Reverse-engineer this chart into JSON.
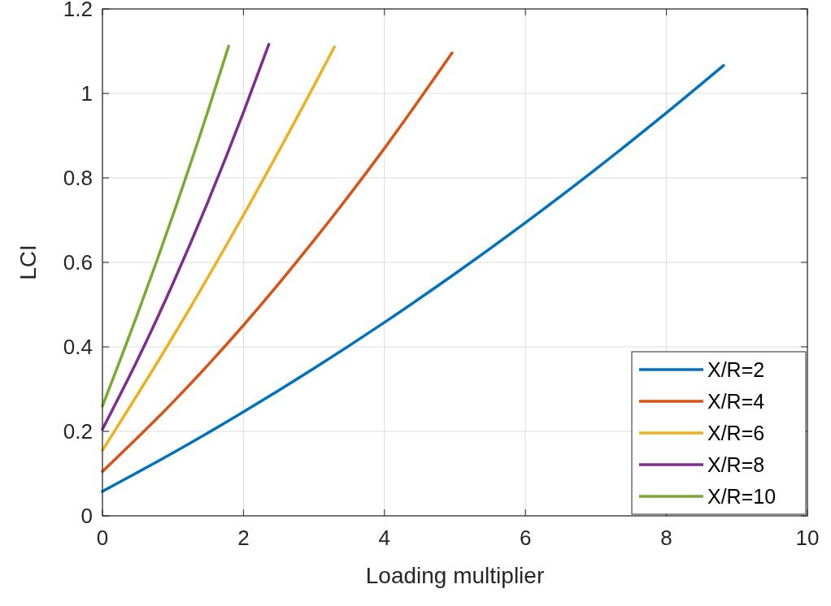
{
  "chart_data": {
    "type": "line",
    "xlabel": "Loading multiplier",
    "ylabel": "LCI",
    "xlim": [
      0,
      10
    ],
    "ylim": [
      0,
      1.2
    ],
    "xticks": [
      0,
      2,
      4,
      6,
      8,
      10
    ],
    "yticks": [
      0,
      0.2,
      0.4,
      0.6,
      0.8,
      1,
      1.2
    ],
    "grid": true,
    "legend": "bottom right",
    "marker": "none",
    "line_style": "solid",
    "series": [
      {
        "name": "X/R=2",
        "color": "#0072bd",
        "x": [
          0,
          1,
          2,
          3,
          4,
          5,
          6,
          7,
          8,
          8.81
        ],
        "values": [
          0.058,
          0.149,
          0.246,
          0.349,
          0.458,
          0.573,
          0.694,
          0.821,
          0.954,
          1.066
        ]
      },
      {
        "name": "X/R=4",
        "color": "#d95319",
        "x": [
          0,
          1,
          2,
          3,
          4,
          4.96
        ],
        "values": [
          0.105,
          0.269,
          0.451,
          0.652,
          0.87,
          1.096
        ]
      },
      {
        "name": "X/R=6",
        "color": "#edb120",
        "x": [
          0,
          1,
          2,
          3,
          3.29
        ],
        "values": [
          0.155,
          0.424,
          0.712,
          1.018,
          1.11
        ]
      },
      {
        "name": "X/R=8",
        "color": "#7e2f8e",
        "x": [
          0,
          0.5,
          1,
          1.5,
          2,
          2.36
        ],
        "values": [
          0.205,
          0.37,
          0.55,
          0.745,
          0.955,
          1.116
        ]
      },
      {
        "name": "X/R=10",
        "color": "#77ac30",
        "x": [
          0,
          0.5,
          1,
          1.5,
          1.79
        ],
        "values": [
          0.26,
          0.479,
          0.712,
          0.96,
          1.112
        ]
      }
    ]
  }
}
